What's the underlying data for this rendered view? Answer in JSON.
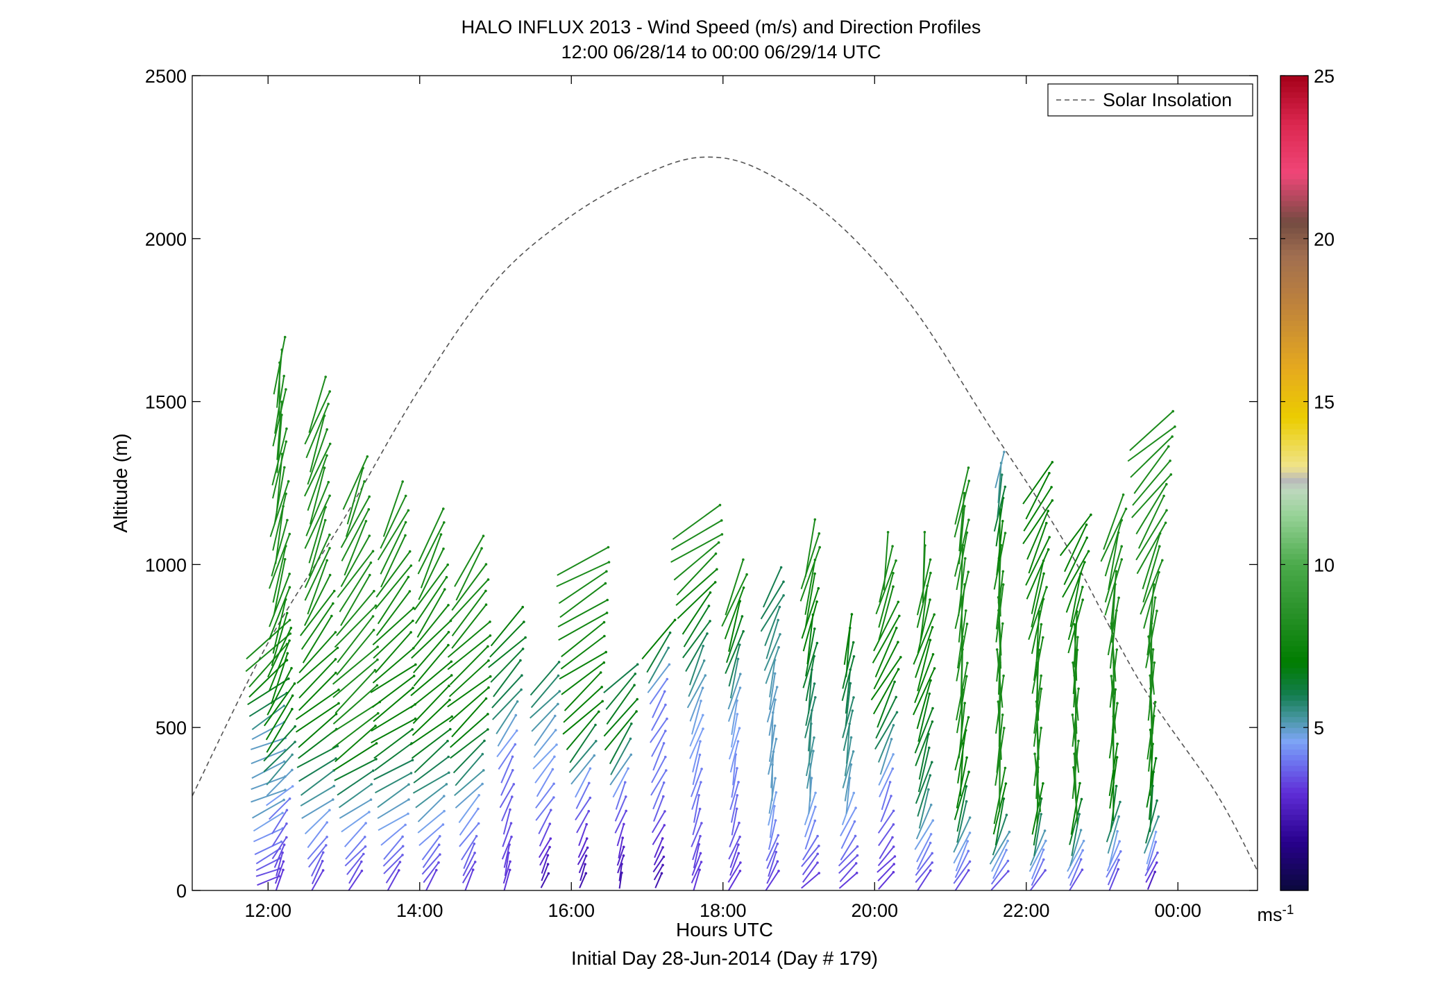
{
  "chart_data": {
    "type": "wind-barb-profile",
    "title": "HALO INFLUX 2013 - Wind Speed (m/s) and Direction Profiles",
    "subtitle": "12:00 06/28/14 to 00:00 06/29/14  UTC",
    "xlabel": "Hours UTC",
    "xlabel2": "Initial Day 28-Jun-2014 (Day # 179)",
    "ylabel": "Altitude (m)",
    "xlim": [
      11.0,
      25.05
    ],
    "ylim": [
      0,
      2500
    ],
    "xticks": [
      {
        "value": 12,
        "label": "12:00"
      },
      {
        "value": 14,
        "label": "14:00"
      },
      {
        "value": 16,
        "label": "16:00"
      },
      {
        "value": 18,
        "label": "18:00"
      },
      {
        "value": 20,
        "label": "20:00"
      },
      {
        "value": 22,
        "label": "22:00"
      },
      {
        "value": 24,
        "label": "00:00"
      }
    ],
    "yticks": [
      0,
      500,
      1000,
      1500,
      2000,
      2500
    ],
    "legend": {
      "label": "Solar Insolation",
      "position": "top-right"
    },
    "solar_insolation": {
      "peak_time": 17.75,
      "peak_value": 2250,
      "points": [
        [
          11.0,
          290
        ],
        [
          12.0,
          760
        ],
        [
          13.0,
          1140
        ],
        [
          14.0,
          1540
        ],
        [
          15.0,
          1870
        ],
        [
          16.0,
          2070
        ],
        [
          17.0,
          2200
        ],
        [
          17.75,
          2250
        ],
        [
          18.5,
          2210
        ],
        [
          19.5,
          2050
        ],
        [
          20.5,
          1790
        ],
        [
          21.5,
          1430
        ],
        [
          22.5,
          1070
        ],
        [
          23.5,
          640
        ],
        [
          24.5,
          300
        ],
        [
          25.05,
          60
        ]
      ]
    },
    "colorbar": {
      "min": 0,
      "max": 25,
      "ticks": [
        5,
        10,
        15,
        20,
        25
      ],
      "unit": "ms-1",
      "unit_base": "ms",
      "unit_exp": "-1"
    },
    "profiles": [
      {
        "time": 12.0,
        "max_alt": 780,
        "speeds": [
          [
            0,
            3
          ],
          [
            250,
            5
          ],
          [
            500,
            5
          ],
          [
            700,
            8
          ]
        ],
        "dir": [
          [
            0,
            250
          ],
          [
            150,
            240
          ],
          [
            400,
            250
          ],
          [
            700,
            225
          ]
        ]
      },
      {
        "time": 12.15,
        "max_alt": 1610,
        "speeds": [
          [
            0,
            3
          ],
          [
            250,
            4
          ],
          [
            500,
            7
          ],
          [
            1000,
            8
          ],
          [
            1600,
            8
          ]
        ],
        "dir": [
          [
            0,
            190
          ],
          [
            300,
            230
          ],
          [
            700,
            200
          ],
          [
            1600,
            185
          ]
        ]
      },
      {
        "time": 12.65,
        "max_alt": 1500,
        "speeds": [
          [
            0,
            3
          ],
          [
            250,
            5
          ],
          [
            500,
            7
          ],
          [
            1000,
            8
          ]
        ],
        "dir": [
          [
            0,
            200
          ],
          [
            300,
            240
          ],
          [
            600,
            230
          ],
          [
            1000,
            200
          ]
        ]
      },
      {
        "time": 13.15,
        "max_alt": 1250,
        "speeds": [
          [
            0,
            3
          ],
          [
            250,
            5
          ],
          [
            500,
            8
          ],
          [
            1200,
            8
          ]
        ],
        "dir": [
          [
            0,
            210
          ],
          [
            300,
            240
          ],
          [
            700,
            225
          ],
          [
            1200,
            200
          ]
        ]
      },
      {
        "time": 13.65,
        "max_alt": 1170,
        "speeds": [
          [
            0,
            3
          ],
          [
            250,
            5
          ],
          [
            500,
            7
          ],
          [
            1100,
            8
          ]
        ],
        "dir": [
          [
            0,
            210
          ],
          [
            250,
            240
          ],
          [
            600,
            235
          ],
          [
            1100,
            205
          ]
        ]
      },
      {
        "time": 14.15,
        "max_alt": 1100,
        "speeds": [
          [
            0,
            3
          ],
          [
            250,
            5
          ],
          [
            500,
            7
          ],
          [
            1100,
            8
          ]
        ],
        "dir": [
          [
            0,
            210
          ],
          [
            300,
            235
          ],
          [
            700,
            225
          ],
          [
            1100,
            200
          ]
        ]
      },
      {
        "time": 14.65,
        "max_alt": 1020,
        "speeds": [
          [
            0,
            3
          ],
          [
            300,
            5
          ],
          [
            500,
            7
          ],
          [
            1000,
            8
          ]
        ],
        "dir": [
          [
            0,
            200
          ],
          [
            300,
            225
          ],
          [
            700,
            230
          ],
          [
            1000,
            210
          ]
        ]
      },
      {
        "time": 15.15,
        "max_alt": 840,
        "speeds": [
          [
            0,
            3
          ],
          [
            400,
            4
          ],
          [
            600,
            6
          ],
          [
            840,
            7
          ]
        ],
        "dir": [
          [
            0,
            190
          ],
          [
            300,
            205
          ],
          [
            700,
            225
          ]
        ]
      },
      {
        "time": 15.65,
        "max_alt": 650,
        "speeds": [
          [
            0,
            2
          ],
          [
            250,
            4
          ],
          [
            500,
            5
          ],
          [
            650,
            6
          ]
        ],
        "dir": [
          [
            0,
            200
          ],
          [
            300,
            215
          ],
          [
            650,
            225
          ]
        ]
      },
      {
        "time": 16.15,
        "max_alt": 1020,
        "speeds": [
          [
            0,
            2
          ],
          [
            300,
            4
          ],
          [
            500,
            7
          ],
          [
            1000,
            8
          ]
        ],
        "dir": [
          [
            0,
            200
          ],
          [
            300,
            210
          ],
          [
            700,
            235
          ],
          [
            1000,
            240
          ]
        ]
      },
      {
        "time": 16.65,
        "max_alt": 660,
        "speeds": [
          [
            0,
            2
          ],
          [
            300,
            4
          ],
          [
            500,
            7
          ],
          [
            660,
            6
          ]
        ],
        "dir": [
          [
            0,
            190
          ],
          [
            300,
            205
          ],
          [
            660,
            225
          ]
        ]
      },
      {
        "time": 17.15,
        "max_alt": 770,
        "speeds": [
          [
            0,
            2
          ],
          [
            300,
            4
          ],
          [
            600,
            4
          ],
          [
            770,
            7
          ]
        ],
        "dir": [
          [
            0,
            210
          ],
          [
            300,
            205
          ],
          [
            770,
            215
          ]
        ]
      },
      {
        "time": 17.65,
        "max_alt": 1140,
        "speeds": [
          [
            0,
            3
          ],
          [
            300,
            4
          ],
          [
            600,
            5
          ],
          [
            1000,
            8
          ]
        ],
        "dir": [
          [
            0,
            200
          ],
          [
            300,
            195
          ],
          [
            700,
            205
          ],
          [
            1100,
            240
          ]
        ]
      },
      {
        "time": 18.15,
        "max_alt": 930,
        "speeds": [
          [
            0,
            3
          ],
          [
            300,
            4
          ],
          [
            600,
            5
          ],
          [
            900,
            8
          ]
        ],
        "dir": [
          [
            0,
            210
          ],
          [
            300,
            190
          ],
          [
            600,
            195
          ],
          [
            900,
            200
          ]
        ]
      },
      {
        "time": 18.65,
        "max_alt": 940,
        "speeds": [
          [
            0,
            3
          ],
          [
            300,
            5
          ],
          [
            600,
            5
          ],
          [
            900,
            6
          ]
        ],
        "dir": [
          [
            0,
            210
          ],
          [
            300,
            185
          ],
          [
            600,
            190
          ],
          [
            900,
            210
          ]
        ]
      },
      {
        "time": 19.15,
        "max_alt": 1060,
        "speeds": [
          [
            0,
            3
          ],
          [
            300,
            5
          ],
          [
            600,
            6
          ],
          [
            1000,
            8
          ]
        ],
        "dir": [
          [
            0,
            230
          ],
          [
            300,
            185
          ],
          [
            600,
            190
          ],
          [
            1000,
            195
          ]
        ]
      },
      {
        "time": 19.65,
        "max_alt": 770,
        "speeds": [
          [
            0,
            3
          ],
          [
            300,
            5
          ],
          [
            600,
            6
          ],
          [
            770,
            7
          ]
        ],
        "dir": [
          [
            0,
            235
          ],
          [
            300,
            190
          ],
          [
            700,
            190
          ]
        ]
      },
      {
        "time": 20.15,
        "max_alt": 1020,
        "speeds": [
          [
            0,
            3
          ],
          [
            300,
            4
          ],
          [
            600,
            7
          ],
          [
            1000,
            8
          ]
        ],
        "dir": [
          [
            0,
            230
          ],
          [
            300,
            200
          ],
          [
            700,
            210
          ],
          [
            1000,
            190
          ]
        ]
      },
      {
        "time": 20.65,
        "max_alt": 1020,
        "speeds": [
          [
            0,
            3
          ],
          [
            300,
            6
          ],
          [
            600,
            7
          ],
          [
            1000,
            8
          ]
        ],
        "dir": [
          [
            0,
            220
          ],
          [
            300,
            195
          ],
          [
            700,
            200
          ],
          [
            1000,
            185
          ]
        ]
      },
      {
        "time": 21.15,
        "max_alt": 1210,
        "speeds": [
          [
            0,
            3
          ],
          [
            300,
            7
          ],
          [
            600,
            8
          ],
          [
            1200,
            8
          ]
        ],
        "dir": [
          [
            0,
            215
          ],
          [
            300,
            190
          ],
          [
            700,
            185
          ],
          [
            1200,
            190
          ]
        ]
      },
      {
        "time": 21.65,
        "max_alt": 1300,
        "speeds": [
          [
            0,
            3
          ],
          [
            300,
            8
          ],
          [
            600,
            8
          ],
          [
            1000,
            8
          ],
          [
            1300,
            5
          ]
        ],
        "dir": [
          [
            0,
            220
          ],
          [
            300,
            185
          ],
          [
            700,
            180
          ],
          [
            1300,
            190
          ]
        ]
      },
      {
        "time": 22.15,
        "max_alt": 1250,
        "speeds": [
          [
            0,
            3
          ],
          [
            300,
            8
          ],
          [
            600,
            8
          ],
          [
            1250,
            7
          ]
        ],
        "dir": [
          [
            0,
            215
          ],
          [
            300,
            180
          ],
          [
            700,
            185
          ],
          [
            1250,
            215
          ]
        ]
      },
      {
        "time": 22.65,
        "max_alt": 1100,
        "speeds": [
          [
            0,
            3
          ],
          [
            300,
            8
          ],
          [
            600,
            8
          ],
          [
            1100,
            7
          ]
        ],
        "dir": [
          [
            0,
            215
          ],
          [
            300,
            180
          ],
          [
            700,
            180
          ],
          [
            1100,
            215
          ]
        ]
      },
      {
        "time": 23.15,
        "max_alt": 1140,
        "speeds": [
          [
            0,
            3
          ],
          [
            300,
            7
          ],
          [
            600,
            8
          ],
          [
            1100,
            8
          ]
        ],
        "dir": [
          [
            0,
            210
          ],
          [
            300,
            185
          ],
          [
            700,
            180
          ],
          [
            1100,
            200
          ]
        ]
      },
      {
        "time": 23.65,
        "max_alt": 1440,
        "speeds": [
          [
            0,
            2
          ],
          [
            200,
            6
          ],
          [
            500,
            8
          ],
          [
            1400,
            8
          ]
        ],
        "dir": [
          [
            0,
            210
          ],
          [
            300,
            185
          ],
          [
            700,
            180
          ],
          [
            1400,
            230
          ]
        ]
      }
    ]
  }
}
